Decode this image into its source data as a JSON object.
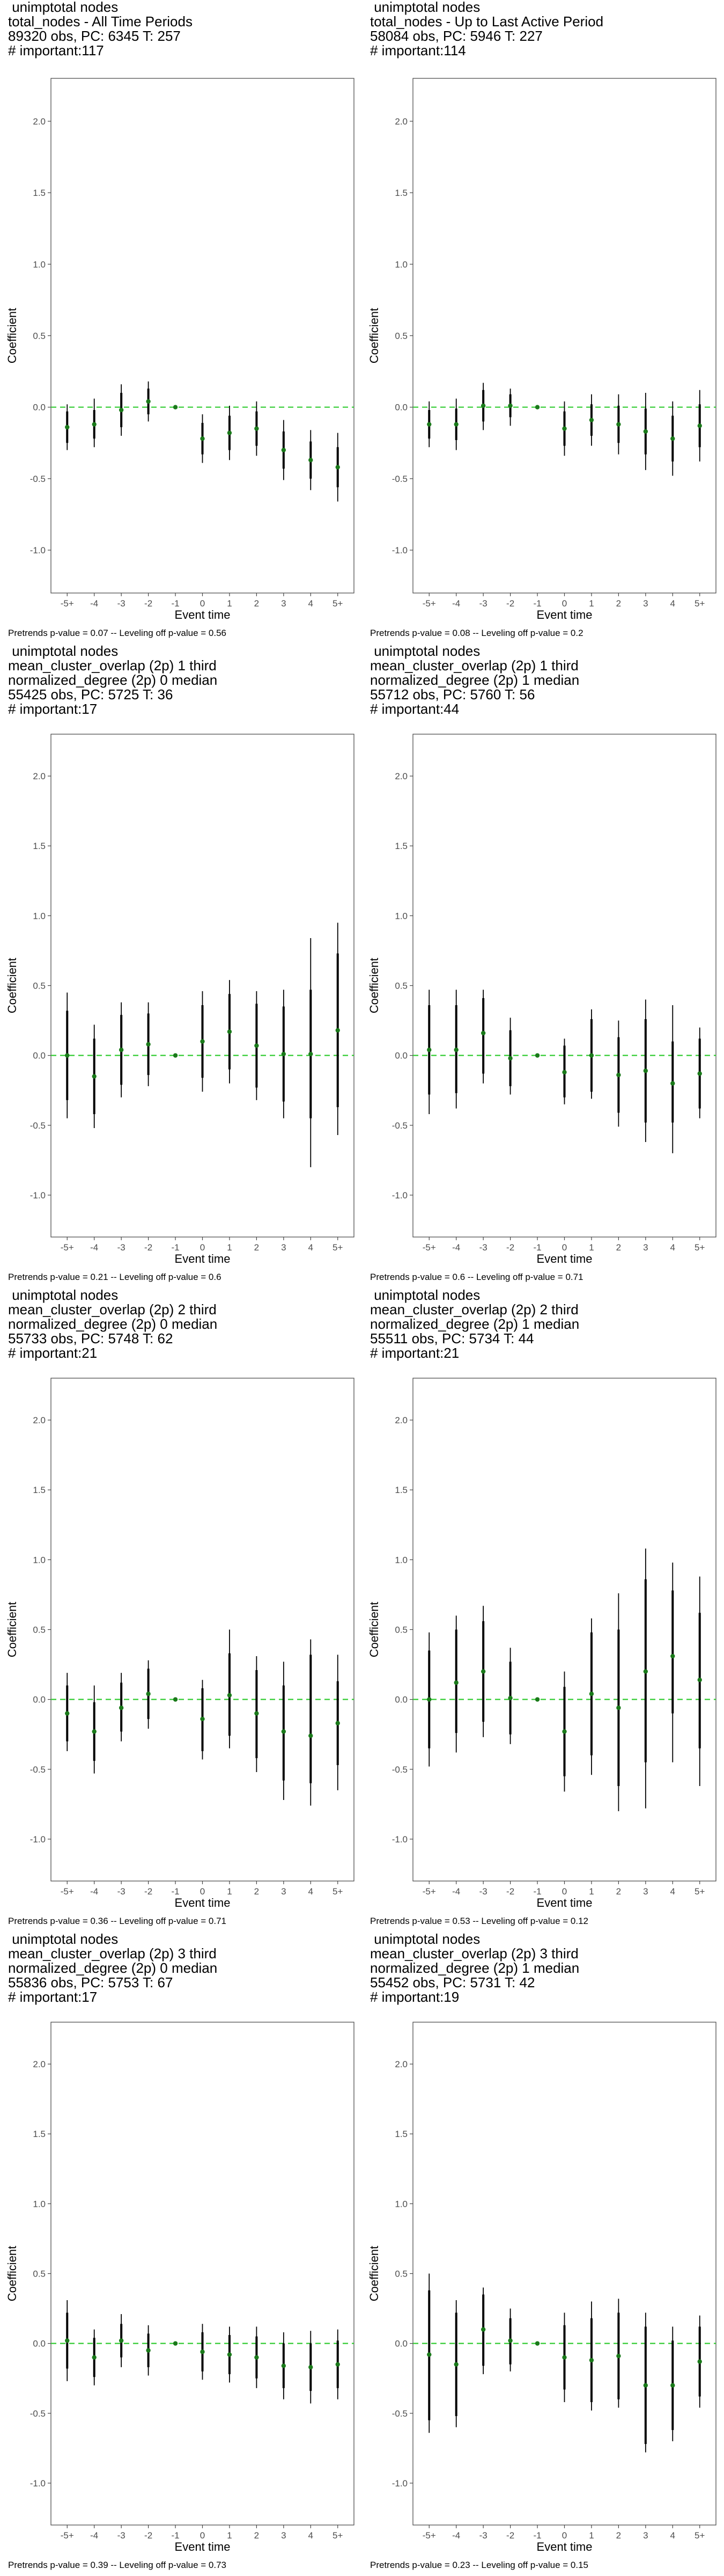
{
  "common": {
    "xlabel": "Event time",
    "ylabel": "Coefficient",
    "x_ticks": [
      "-5+",
      "-4",
      "-3",
      "-2",
      "-1",
      "0",
      "1",
      "2",
      "3",
      "4",
      "5+"
    ],
    "y_ticks": [
      "-1.0",
      "-0.5",
      "0.0",
      "0.5",
      "1.0",
      "1.5",
      "2.0"
    ],
    "ylim": [
      -1.3,
      2.3
    ],
    "zero_line_color": "#33cc33",
    "point_color": "#1a7a1a",
    "bar_color": "#000000"
  },
  "chart_data": [
    {
      "type": "scatter",
      "title_lines": [
        " unimptotal nodes",
        "total_nodes - All Time Periods",
        "89320 obs, PC: 6345 T: 257",
        "# important:117"
      ],
      "footnote": "Pretrends p-value = 0.07 -- Leveling off p-value = 0.56",
      "x": [
        "-5+",
        "-4",
        "-3",
        "-2",
        "-1",
        "0",
        "1",
        "2",
        "3",
        "4",
        "5+"
      ],
      "estimate": [
        -0.14,
        -0.12,
        -0.02,
        0.04,
        0.0,
        -0.22,
        -0.18,
        -0.15,
        -0.3,
        -0.37,
        -0.42
      ],
      "ci_inner": [
        [
          -0.25,
          -0.03
        ],
        [
          -0.22,
          -0.02
        ],
        [
          -0.14,
          0.1
        ],
        [
          -0.05,
          0.13
        ],
        [
          0.0,
          0.0
        ],
        [
          -0.33,
          -0.11
        ],
        [
          -0.3,
          -0.06
        ],
        [
          -0.27,
          -0.03
        ],
        [
          -0.43,
          -0.17
        ],
        [
          -0.5,
          -0.24
        ],
        [
          -0.56,
          -0.28
        ]
      ],
      "ci_outer": [
        [
          -0.3,
          0.02
        ],
        [
          -0.28,
          0.06
        ],
        [
          -0.2,
          0.16
        ],
        [
          -0.1,
          0.18
        ],
        [
          0.0,
          0.0
        ],
        [
          -0.39,
          -0.05
        ],
        [
          -0.37,
          0.01
        ],
        [
          -0.34,
          0.04
        ],
        [
          -0.51,
          -0.09
        ],
        [
          -0.58,
          -0.16
        ],
        [
          -0.66,
          -0.18
        ]
      ]
    },
    {
      "type": "scatter",
      "title_lines": [
        " unimptotal nodes",
        "total_nodes - Up to Last Active Period",
        "58084 obs, PC: 5946 T: 227",
        "# important:114"
      ],
      "footnote": "Pretrends p-value = 0.08 -- Leveling off p-value = 0.2",
      "x": [
        "-5+",
        "-4",
        "-3",
        "-2",
        "-1",
        "0",
        "1",
        "2",
        "3",
        "4",
        "5+"
      ],
      "estimate": [
        -0.12,
        -0.12,
        0.01,
        0.01,
        0.0,
        -0.15,
        -0.09,
        -0.12,
        -0.17,
        -0.22,
        -0.13
      ],
      "ci_inner": [
        [
          -0.22,
          -0.02
        ],
        [
          -0.23,
          -0.01
        ],
        [
          -0.1,
          0.12
        ],
        [
          -0.07,
          0.09
        ],
        [
          0.0,
          0.0
        ],
        [
          -0.27,
          -0.03
        ],
        [
          -0.2,
          0.02
        ],
        [
          -0.25,
          0.01
        ],
        [
          -0.33,
          -0.01
        ],
        [
          -0.38,
          -0.06
        ],
        [
          -0.28,
          0.02
        ]
      ],
      "ci_outer": [
        [
          -0.28,
          0.04
        ],
        [
          -0.3,
          0.06
        ],
        [
          -0.16,
          0.17
        ],
        [
          -0.13,
          0.13
        ],
        [
          0.0,
          0.0
        ],
        [
          -0.34,
          0.04
        ],
        [
          -0.27,
          0.09
        ],
        [
          -0.33,
          0.09
        ],
        [
          -0.44,
          0.1
        ],
        [
          -0.48,
          0.04
        ],
        [
          -0.38,
          0.12
        ]
      ]
    },
    {
      "type": "scatter",
      "title_lines": [
        " unimptotal nodes",
        "mean_cluster_overlap (2p) 1 third",
        "normalized_degree (2p) 0 median",
        "55425 obs, PC: 5725 T: 36",
        "# important:17"
      ],
      "footnote": "Pretrends p-value = 0.21 -- Leveling off p-value = 0.6",
      "x": [
        "-5+",
        "-4",
        "-3",
        "-2",
        "-1",
        "0",
        "1",
        "2",
        "3",
        "4",
        "5+"
      ],
      "estimate": [
        0.0,
        -0.15,
        0.04,
        0.08,
        0.0,
        0.1,
        0.17,
        0.07,
        0.01,
        0.01,
        0.18
      ],
      "ci_inner": [
        [
          -0.32,
          0.32
        ],
        [
          -0.42,
          0.12
        ],
        [
          -0.21,
          0.29
        ],
        [
          -0.14,
          0.3
        ],
        [
          0.0,
          0.0
        ],
        [
          -0.16,
          0.36
        ],
        [
          -0.1,
          0.44
        ],
        [
          -0.23,
          0.37
        ],
        [
          -0.33,
          0.35
        ],
        [
          -0.45,
          0.47
        ],
        [
          -0.37,
          0.73
        ]
      ],
      "ci_outer": [
        [
          -0.45,
          0.45
        ],
        [
          -0.52,
          0.22
        ],
        [
          -0.3,
          0.38
        ],
        [
          -0.22,
          0.38
        ],
        [
          0.0,
          0.0
        ],
        [
          -0.26,
          0.46
        ],
        [
          -0.2,
          0.54
        ],
        [
          -0.32,
          0.46
        ],
        [
          -0.45,
          0.47
        ],
        [
          -0.8,
          0.84
        ],
        [
          -0.57,
          0.95
        ]
      ]
    },
    {
      "type": "scatter",
      "title_lines": [
        " unimptotal nodes",
        "mean_cluster_overlap (2p) 1 third",
        "normalized_degree (2p) 1 median",
        "55712 obs, PC: 5760 T: 56",
        "# important:44"
      ],
      "footnote": "Pretrends p-value = 0.6 -- Leveling off p-value = 0.71",
      "x": [
        "-5+",
        "-4",
        "-3",
        "-2",
        "-1",
        "0",
        "1",
        "2",
        "3",
        "4",
        "5+"
      ],
      "estimate": [
        0.04,
        0.04,
        0.16,
        -0.02,
        0.0,
        -0.12,
        0.0,
        -0.14,
        -0.11,
        -0.2,
        -0.13
      ],
      "ci_inner": [
        [
          -0.28,
          0.36
        ],
        [
          -0.27,
          0.36
        ],
        [
          -0.13,
          0.41
        ],
        [
          -0.22,
          0.18
        ],
        [
          0.0,
          0.0
        ],
        [
          -0.3,
          0.07
        ],
        [
          -0.26,
          0.26
        ],
        [
          -0.41,
          0.13
        ],
        [
          -0.48,
          0.26
        ],
        [
          -0.48,
          0.1
        ],
        [
          -0.38,
          0.12
        ]
      ],
      "ci_outer": [
        [
          -0.42,
          0.47
        ],
        [
          -0.38,
          0.47
        ],
        [
          -0.2,
          0.47
        ],
        [
          -0.28,
          0.27
        ],
        [
          0.0,
          0.0
        ],
        [
          -0.35,
          0.12
        ],
        [
          -0.31,
          0.33
        ],
        [
          -0.51,
          0.25
        ],
        [
          -0.62,
          0.4
        ],
        [
          -0.7,
          0.36
        ],
        [
          -0.45,
          0.2
        ]
      ]
    },
    {
      "type": "scatter",
      "title_lines": [
        " unimptotal nodes",
        "mean_cluster_overlap (2p) 2 third",
        "normalized_degree (2p) 0 median",
        "55733 obs, PC: 5748 T: 62",
        "# important:21"
      ],
      "footnote": "Pretrends p-value = 0.36 -- Leveling off p-value = 0.71",
      "x": [
        "-5+",
        "-4",
        "-3",
        "-2",
        "-1",
        "0",
        "1",
        "2",
        "3",
        "4",
        "5+"
      ],
      "estimate": [
        -0.1,
        -0.23,
        -0.06,
        0.04,
        0.0,
        -0.14,
        0.03,
        -0.1,
        -0.23,
        -0.26,
        -0.17
      ],
      "ci_inner": [
        [
          -0.3,
          0.1
        ],
        [
          -0.44,
          -0.02
        ],
        [
          -0.23,
          0.12
        ],
        [
          -0.14,
          0.22
        ],
        [
          0.0,
          0.0
        ],
        [
          -0.37,
          0.08
        ],
        [
          -0.26,
          0.33
        ],
        [
          -0.42,
          0.21
        ],
        [
          -0.58,
          0.1
        ],
        [
          -0.6,
          0.32
        ],
        [
          -0.47,
          0.13
        ]
      ],
      "ci_outer": [
        [
          -0.37,
          0.19
        ],
        [
          -0.53,
          0.1
        ],
        [
          -0.3,
          0.19
        ],
        [
          -0.21,
          0.28
        ],
        [
          0.0,
          0.0
        ],
        [
          -0.43,
          0.14
        ],
        [
          -0.35,
          0.5
        ],
        [
          -0.52,
          0.31
        ],
        [
          -0.72,
          0.27
        ],
        [
          -0.76,
          0.43
        ],
        [
          -0.65,
          0.32
        ]
      ]
    },
    {
      "type": "scatter",
      "title_lines": [
        " unimptotal nodes",
        "mean_cluster_overlap (2p) 2 third",
        "normalized_degree (2p) 1 median",
        "55511 obs, PC: 5734 T: 44",
        "# important:21"
      ],
      "footnote": "Pretrends p-value = 0.53 -- Leveling off p-value = 0.12",
      "x": [
        "-5+",
        "-4",
        "-3",
        "-2",
        "-1",
        "0",
        "1",
        "2",
        "3",
        "4",
        "5+"
      ],
      "estimate": [
        0.0,
        0.12,
        0.2,
        0.01,
        0.0,
        -0.23,
        0.04,
        -0.06,
        0.2,
        0.31,
        0.14
      ],
      "ci_inner": [
        [
          -0.35,
          0.35
        ],
        [
          -0.24,
          0.5
        ],
        [
          -0.16,
          0.56
        ],
        [
          -0.25,
          0.27
        ],
        [
          0.0,
          0.0
        ],
        [
          -0.55,
          0.09
        ],
        [
          -0.4,
          0.48
        ],
        [
          -0.62,
          0.5
        ],
        [
          -0.45,
          0.86
        ],
        [
          -0.1,
          0.78
        ],
        [
          -0.35,
          0.62
        ]
      ],
      "ci_outer": [
        [
          -0.48,
          0.48
        ],
        [
          -0.38,
          0.6
        ],
        [
          -0.27,
          0.67
        ],
        [
          -0.32,
          0.37
        ],
        [
          0.0,
          0.0
        ],
        [
          -0.66,
          0.2
        ],
        [
          -0.54,
          0.58
        ],
        [
          -0.8,
          0.76
        ],
        [
          -0.78,
          1.08
        ],
        [
          -0.45,
          0.98
        ],
        [
          -0.62,
          0.88
        ]
      ]
    },
    {
      "type": "scatter",
      "title_lines": [
        " unimptotal nodes",
        "mean_cluster_overlap (2p) 3 third",
        "normalized_degree (2p) 0 median",
        "55836 obs, PC: 5753 T: 67",
        "# important:17"
      ],
      "footnote": "Pretrends p-value = 0.39 -- Leveling off p-value = 0.73",
      "x": [
        "-5+",
        "-4",
        "-3",
        "-2",
        "-1",
        "0",
        "1",
        "2",
        "3",
        "4",
        "5+"
      ],
      "estimate": [
        0.02,
        -0.1,
        0.02,
        -0.05,
        0.0,
        -0.06,
        -0.08,
        -0.1,
        -0.16,
        -0.17,
        -0.15
      ],
      "ci_inner": [
        [
          -0.18,
          0.22
        ],
        [
          -0.24,
          0.04
        ],
        [
          -0.1,
          0.14
        ],
        [
          -0.17,
          0.07
        ],
        [
          0.0,
          0.0
        ],
        [
          -0.2,
          0.08
        ],
        [
          -0.22,
          0.06
        ],
        [
          -0.25,
          0.05
        ],
        [
          -0.32,
          0.0
        ],
        [
          -0.34,
          0.0
        ],
        [
          -0.32,
          0.02
        ]
      ],
      "ci_outer": [
        [
          -0.27,
          0.31
        ],
        [
          -0.3,
          0.1
        ],
        [
          -0.17,
          0.21
        ],
        [
          -0.23,
          0.13
        ],
        [
          0.0,
          0.0
        ],
        [
          -0.26,
          0.14
        ],
        [
          -0.28,
          0.12
        ],
        [
          -0.32,
          0.12
        ],
        [
          -0.4,
          0.08
        ],
        [
          -0.43,
          0.09
        ],
        [
          -0.4,
          0.1
        ]
      ]
    },
    {
      "type": "scatter",
      "title_lines": [
        " unimptotal nodes",
        "mean_cluster_overlap (2p) 3 third",
        "normalized_degree (2p) 1 median",
        "55452 obs, PC: 5731 T: 42",
        "# important:19"
      ],
      "footnote": "Pretrends p-value = 0.23 -- Leveling off p-value = 0.15",
      "x": [
        "-5+",
        "-4",
        "-3",
        "-2",
        "-1",
        "0",
        "1",
        "2",
        "3",
        "4",
        "5+"
      ],
      "estimate": [
        -0.08,
        -0.15,
        0.1,
        0.02,
        0.0,
        -0.1,
        -0.12,
        -0.09,
        -0.3,
        -0.3,
        -0.13
      ],
      "ci_inner": [
        [
          -0.55,
          0.38
        ],
        [
          -0.52,
          0.22
        ],
        [
          -0.16,
          0.35
        ],
        [
          -0.15,
          0.18
        ],
        [
          0.0,
          0.0
        ],
        [
          -0.33,
          0.13
        ],
        [
          -0.42,
          0.18
        ],
        [
          -0.4,
          0.22
        ],
        [
          -0.72,
          0.12
        ],
        [
          -0.62,
          0.02
        ],
        [
          -0.38,
          0.12
        ]
      ],
      "ci_outer": [
        [
          -0.64,
          0.5
        ],
        [
          -0.6,
          0.31
        ],
        [
          -0.22,
          0.4
        ],
        [
          -0.2,
          0.25
        ],
        [
          0.0,
          0.0
        ],
        [
          -0.42,
          0.22
        ],
        [
          -0.48,
          0.3
        ],
        [
          -0.46,
          0.32
        ],
        [
          -0.78,
          0.22
        ],
        [
          -0.7,
          0.12
        ],
        [
          -0.46,
          0.2
        ]
      ]
    }
  ]
}
